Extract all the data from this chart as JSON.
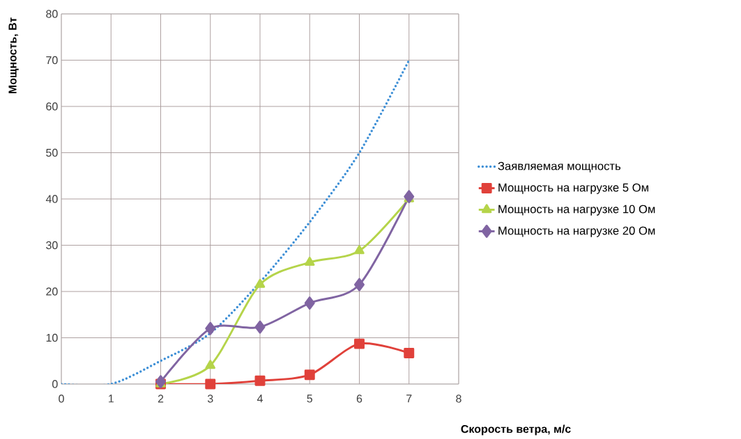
{
  "chart_data": {
    "type": "line",
    "xlabel": "Скорость ветра, м/с",
    "ylabel": "Мощность, Вт",
    "x": [
      0,
      1,
      2,
      3,
      4,
      5,
      6,
      7
    ],
    "series": [
      {
        "name": "Заявляемая мощность",
        "color": "#3d8fd6",
        "line_style": "dotted",
        "marker": "none",
        "values": [
          0,
          0,
          5,
          11,
          22,
          35,
          50,
          70
        ]
      },
      {
        "name": "Мощность на нагрузке 5 Ом",
        "color": "#e0413a",
        "line_style": "solid",
        "marker": "square",
        "values": [
          null,
          null,
          0,
          0,
          0.7,
          2,
          8.7,
          6.7
        ]
      },
      {
        "name": "Мощность на нагрузке 10 Ом",
        "color": "#b5d44a",
        "line_style": "solid",
        "marker": "triangle",
        "values": [
          null,
          null,
          0,
          4,
          21.5,
          26.3,
          28.8,
          40
        ]
      },
      {
        "name": "Мощность на нагрузке 20 Ом",
        "color": "#8064a2",
        "line_style": "solid",
        "marker": "diamond",
        "values": [
          null,
          null,
          0.5,
          12,
          12.3,
          17.5,
          21.5,
          40.5
        ]
      }
    ],
    "xlim": [
      0,
      8
    ],
    "ylim": [
      0,
      80
    ],
    "xticks": [
      0,
      1,
      2,
      3,
      4,
      5,
      6,
      7,
      8
    ],
    "yticks": [
      0,
      10,
      20,
      30,
      40,
      50,
      60,
      70,
      80
    ],
    "grid": true,
    "legend": "right"
  }
}
